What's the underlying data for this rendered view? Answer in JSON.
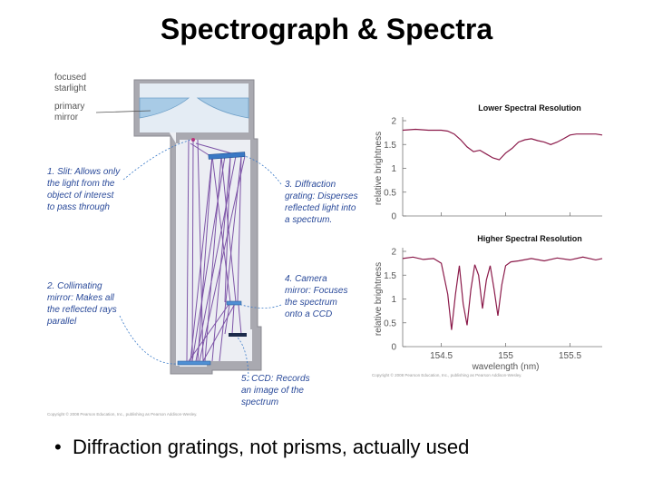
{
  "slide": {
    "title": "Spectrograph & Spectra",
    "bullet": "Diffraction gratings, not prisms, actually used"
  },
  "diagram": {
    "labels": {
      "focused": "focused",
      "starlight": "starlight",
      "primary": "primary",
      "mirror": "mirror",
      "slit": [
        "1. Slit: Allows only",
        "the light from the",
        "object of interest",
        "to pass through"
      ],
      "collimating": [
        "2. Collimating",
        "mirror: Makes all",
        "the reflected rays",
        "parallel"
      ],
      "diffraction": [
        "3. Diffraction",
        "grating: Disperses",
        "reflected light into",
        "a spectrum."
      ],
      "camera": [
        "4. Camera",
        "mirror: Focuses",
        "the spectrum",
        "onto a CCD"
      ],
      "ccd": [
        "5. CCD: Records",
        "an image of the",
        "spectrum"
      ]
    },
    "copyright": "Copyright © 2008 Pearson Education, Inc., publishing as Pearson Addison-Wesley."
  },
  "chart_data": [
    {
      "type": "line",
      "title": "Lower Spectral Resolution",
      "ylabel": "relative brightness",
      "xlabel": "",
      "xlim": [
        154.2,
        155.75
      ],
      "ylim": [
        0,
        2
      ],
      "yticks": [
        "0",
        "0.5",
        "1",
        "1.5",
        "2"
      ],
      "xticks": [
        154.5,
        155,
        155.5
      ],
      "color": "#8b1a4a",
      "series": [
        {
          "x": [
            154.2,
            154.3,
            154.4,
            154.5,
            154.55,
            154.6,
            154.65,
            154.7,
            154.75,
            154.8,
            154.85,
            154.9,
            154.95,
            155.0,
            155.05,
            155.1,
            155.15,
            155.2,
            155.25,
            155.3,
            155.35,
            155.4,
            155.45,
            155.5,
            155.55,
            155.6,
            155.7,
            155.75
          ],
          "y": [
            1.8,
            1.82,
            1.8,
            1.8,
            1.78,
            1.72,
            1.6,
            1.45,
            1.35,
            1.38,
            1.3,
            1.22,
            1.18,
            1.32,
            1.42,
            1.55,
            1.6,
            1.62,
            1.58,
            1.55,
            1.5,
            1.55,
            1.62,
            1.7,
            1.72,
            1.72,
            1.72,
            1.7
          ]
        }
      ]
    },
    {
      "type": "line",
      "title": "Higher Spectral Resolution",
      "ylabel": "relative brightness",
      "xlabel": "wavelength (nm)",
      "xlim": [
        154.2,
        155.75
      ],
      "ylim": [
        0,
        2
      ],
      "yticks": [
        "0",
        "0.5",
        "1",
        "1.5",
        "2"
      ],
      "xticks": [
        154.5,
        155,
        155.5
      ],
      "xticklabels": [
        "154.5",
        "155",
        "155.5"
      ],
      "color": "#8b1a4a",
      "series": [
        {
          "x": [
            154.2,
            154.28,
            154.36,
            154.44,
            154.5,
            154.55,
            154.58,
            154.61,
            154.64,
            154.67,
            154.7,
            154.73,
            154.76,
            154.79,
            154.82,
            154.85,
            154.88,
            154.91,
            154.94,
            154.97,
            155.0,
            155.04,
            155.1,
            155.2,
            155.3,
            155.4,
            155.5,
            155.6,
            155.7,
            155.75
          ],
          "y": [
            1.85,
            1.88,
            1.83,
            1.85,
            1.75,
            1.1,
            0.35,
            1.1,
            1.7,
            0.9,
            0.45,
            1.2,
            1.72,
            1.5,
            0.8,
            1.4,
            1.7,
            1.2,
            0.65,
            1.3,
            1.7,
            1.78,
            1.8,
            1.85,
            1.8,
            1.86,
            1.82,
            1.88,
            1.82,
            1.85
          ]
        }
      ]
    }
  ],
  "plots_copyright": "Copyright © 2008 Pearson Education, Inc., publishing as Pearson Addison-Wesley."
}
